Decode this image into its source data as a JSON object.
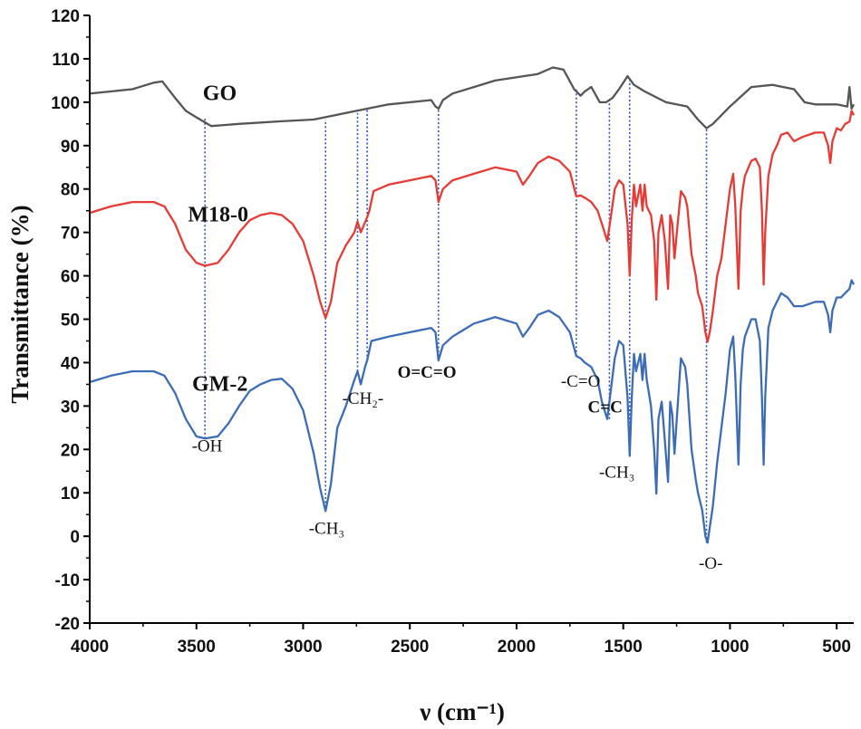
{
  "chart_data": {
    "type": "line",
    "xlabel": "ν (cm⁻¹)",
    "ylabel": "Transmittance (%)",
    "xlim": [
      4000,
      420
    ],
    "ylim": [
      -20,
      120
    ],
    "x_reversed": true,
    "xticks": [
      4000,
      3500,
      3000,
      2500,
      2000,
      1500,
      1000,
      500
    ],
    "yticks": [
      -20,
      -10,
      0,
      10,
      20,
      30,
      40,
      50,
      60,
      70,
      80,
      90,
      100,
      110,
      120
    ],
    "series": [
      {
        "name": "GO",
        "label": "GO",
        "color": "#555555",
        "points": [
          [
            4000,
            102
          ],
          [
            3800,
            103
          ],
          [
            3700,
            104.5
          ],
          [
            3660,
            104.8
          ],
          [
            3600,
            101
          ],
          [
            3550,
            98
          ],
          [
            3500,
            96.5
          ],
          [
            3430,
            94.5
          ],
          [
            3300,
            95
          ],
          [
            3100,
            95.6
          ],
          [
            2950,
            96
          ],
          [
            2800,
            97.5
          ],
          [
            2600,
            99.5
          ],
          [
            2400,
            100.5
          ],
          [
            2380,
            99
          ],
          [
            2365,
            98.5
          ],
          [
            2345,
            100.5
          ],
          [
            2300,
            102
          ],
          [
            2100,
            105
          ],
          [
            1900,
            106.5
          ],
          [
            1830,
            108
          ],
          [
            1780,
            107.5
          ],
          [
            1730,
            103
          ],
          [
            1700,
            101.5
          ],
          [
            1680,
            102.5
          ],
          [
            1650,
            103.5
          ],
          [
            1610,
            100
          ],
          [
            1580,
            100
          ],
          [
            1550,
            101
          ],
          [
            1520,
            103
          ],
          [
            1480,
            106
          ],
          [
            1450,
            104
          ],
          [
            1400,
            102.5
          ],
          [
            1300,
            100
          ],
          [
            1200,
            99
          ],
          [
            1150,
            96
          ],
          [
            1110,
            94
          ],
          [
            1080,
            95
          ],
          [
            1000,
            99
          ],
          [
            900,
            103.5
          ],
          [
            800,
            104
          ],
          [
            700,
            103
          ],
          [
            650,
            100
          ],
          [
            600,
            99.5
          ],
          [
            500,
            99.5
          ],
          [
            450,
            99
          ],
          [
            440,
            103.5
          ],
          [
            430,
            98.5
          ],
          [
            420,
            99.5
          ]
        ]
      },
      {
        "name": "M18-0",
        "label": "M18-0",
        "color": "#e83a35",
        "points": [
          [
            4000,
            74.5
          ],
          [
            3900,
            76
          ],
          [
            3800,
            77
          ],
          [
            3700,
            77
          ],
          [
            3650,
            76
          ],
          [
            3600,
            72
          ],
          [
            3550,
            66
          ],
          [
            3500,
            63
          ],
          [
            3460,
            62.3
          ],
          [
            3400,
            63
          ],
          [
            3350,
            66
          ],
          [
            3300,
            70
          ],
          [
            3250,
            72.8
          ],
          [
            3200,
            74
          ],
          [
            3150,
            74.5
          ],
          [
            3100,
            74
          ],
          [
            3050,
            72
          ],
          [
            3000,
            68
          ],
          [
            2950,
            60
          ],
          [
            2920,
            54
          ],
          [
            2895,
            50.3
          ],
          [
            2870,
            54
          ],
          [
            2840,
            63
          ],
          [
            2800,
            67
          ],
          [
            2760,
            70
          ],
          [
            2745,
            72.5
          ],
          [
            2730,
            70
          ],
          [
            2700,
            73.5
          ],
          [
            2690,
            75
          ],
          [
            2670,
            79.5
          ],
          [
            2600,
            81
          ],
          [
            2500,
            82
          ],
          [
            2400,
            83
          ],
          [
            2380,
            82
          ],
          [
            2366,
            77
          ],
          [
            2345,
            80
          ],
          [
            2300,
            82
          ],
          [
            2200,
            83.5
          ],
          [
            2100,
            85
          ],
          [
            2000,
            84
          ],
          [
            1970,
            81
          ],
          [
            1940,
            83
          ],
          [
            1900,
            86
          ],
          [
            1850,
            87.5
          ],
          [
            1800,
            86.5
          ],
          [
            1750,
            84
          ],
          [
            1720,
            78.3
          ],
          [
            1700,
            78.5
          ],
          [
            1680,
            78
          ],
          [
            1650,
            77
          ],
          [
            1620,
            75
          ],
          [
            1600,
            72
          ],
          [
            1575,
            68
          ],
          [
            1560,
            73
          ],
          [
            1540,
            80
          ],
          [
            1520,
            82
          ],
          [
            1500,
            81
          ],
          [
            1480,
            72
          ],
          [
            1470,
            60
          ],
          [
            1460,
            73
          ],
          [
            1450,
            81
          ],
          [
            1440,
            76
          ],
          [
            1420,
            81
          ],
          [
            1410,
            75
          ],
          [
            1400,
            81
          ],
          [
            1390,
            76
          ],
          [
            1370,
            74
          ],
          [
            1355,
            68
          ],
          [
            1345,
            54.5
          ],
          [
            1335,
            70
          ],
          [
            1320,
            74
          ],
          [
            1305,
            68
          ],
          [
            1290,
            57
          ],
          [
            1280,
            74
          ],
          [
            1270,
            72
          ],
          [
            1260,
            64
          ],
          [
            1245,
            72
          ],
          [
            1230,
            79.5
          ],
          [
            1210,
            78
          ],
          [
            1200,
            76
          ],
          [
            1180,
            65
          ],
          [
            1160,
            60
          ],
          [
            1150,
            56
          ],
          [
            1130,
            53
          ],
          [
            1115,
            47
          ],
          [
            1105,
            44.8
          ],
          [
            1095,
            47
          ],
          [
            1080,
            52
          ],
          [
            1060,
            60
          ],
          [
            1040,
            64
          ],
          [
            1020,
            72
          ],
          [
            1000,
            80
          ],
          [
            985,
            83.5
          ],
          [
            975,
            76
          ],
          [
            960,
            57
          ],
          [
            950,
            75
          ],
          [
            940,
            80
          ],
          [
            930,
            83
          ],
          [
            900,
            86.5
          ],
          [
            880,
            87
          ],
          [
            860,
            85
          ],
          [
            850,
            75
          ],
          [
            842,
            58
          ],
          [
            835,
            70
          ],
          [
            820,
            83
          ],
          [
            800,
            88
          ],
          [
            780,
            90
          ],
          [
            760,
            92.5
          ],
          [
            730,
            93
          ],
          [
            700,
            91
          ],
          [
            660,
            92
          ],
          [
            600,
            93
          ],
          [
            560,
            93
          ],
          [
            540,
            90
          ],
          [
            530,
            86
          ],
          [
            520,
            91
          ],
          [
            500,
            94
          ],
          [
            480,
            93.5
          ],
          [
            460,
            95
          ],
          [
            440,
            95.5
          ],
          [
            430,
            98
          ],
          [
            420,
            97
          ]
        ]
      },
      {
        "name": "GM-2",
        "label": "GM-2",
        "color": "#3c6cb5",
        "points": [
          [
            4000,
            35.5
          ],
          [
            3900,
            37
          ],
          [
            3800,
            38
          ],
          [
            3700,
            38
          ],
          [
            3650,
            37
          ],
          [
            3600,
            33
          ],
          [
            3550,
            27
          ],
          [
            3500,
            23
          ],
          [
            3460,
            22.5
          ],
          [
            3400,
            23
          ],
          [
            3350,
            26
          ],
          [
            3300,
            30
          ],
          [
            3250,
            33.5
          ],
          [
            3200,
            35
          ],
          [
            3150,
            36
          ],
          [
            3100,
            36.3
          ],
          [
            3050,
            34
          ],
          [
            3000,
            29
          ],
          [
            2950,
            19
          ],
          [
            2920,
            11
          ],
          [
            2895,
            5.8
          ],
          [
            2870,
            12
          ],
          [
            2840,
            25
          ],
          [
            2800,
            30
          ],
          [
            2760,
            36
          ],
          [
            2745,
            38
          ],
          [
            2730,
            35
          ],
          [
            2710,
            39
          ],
          [
            2700,
            40.5
          ],
          [
            2680,
            45
          ],
          [
            2600,
            46
          ],
          [
            2500,
            47
          ],
          [
            2400,
            48
          ],
          [
            2380,
            47
          ],
          [
            2366,
            40.5
          ],
          [
            2345,
            44
          ],
          [
            2300,
            46
          ],
          [
            2200,
            49
          ],
          [
            2100,
            50.5
          ],
          [
            2000,
            49
          ],
          [
            1970,
            46
          ],
          [
            1940,
            48
          ],
          [
            1900,
            51
          ],
          [
            1850,
            52
          ],
          [
            1800,
            50.5
          ],
          [
            1750,
            47
          ],
          [
            1720,
            41.5
          ],
          [
            1700,
            41
          ],
          [
            1680,
            40
          ],
          [
            1650,
            39
          ],
          [
            1620,
            36
          ],
          [
            1600,
            31
          ],
          [
            1575,
            27
          ],
          [
            1560,
            33
          ],
          [
            1540,
            41
          ],
          [
            1520,
            45
          ],
          [
            1500,
            44
          ],
          [
            1480,
            32
          ],
          [
            1470,
            18.5
          ],
          [
            1460,
            32
          ],
          [
            1450,
            42
          ],
          [
            1440,
            38
          ],
          [
            1420,
            42
          ],
          [
            1410,
            36
          ],
          [
            1400,
            42
          ],
          [
            1390,
            36
          ],
          [
            1370,
            30
          ],
          [
            1355,
            20
          ],
          [
            1345,
            9.8
          ],
          [
            1335,
            27
          ],
          [
            1320,
            31
          ],
          [
            1305,
            22
          ],
          [
            1290,
            12.5
          ],
          [
            1280,
            31
          ],
          [
            1270,
            28
          ],
          [
            1260,
            19
          ],
          [
            1245,
            30
          ],
          [
            1230,
            41
          ],
          [
            1210,
            39
          ],
          [
            1200,
            35
          ],
          [
            1180,
            20
          ],
          [
            1160,
            13
          ],
          [
            1150,
            10
          ],
          [
            1130,
            6
          ],
          [
            1115,
            0
          ],
          [
            1105,
            -1.5
          ],
          [
            1095,
            2
          ],
          [
            1080,
            7
          ],
          [
            1060,
            17
          ],
          [
            1040,
            25
          ],
          [
            1020,
            33
          ],
          [
            1000,
            43
          ],
          [
            985,
            46
          ],
          [
            975,
            37
          ],
          [
            960,
            16.5
          ],
          [
            950,
            35
          ],
          [
            940,
            43
          ],
          [
            930,
            46
          ],
          [
            900,
            50
          ],
          [
            880,
            50
          ],
          [
            860,
            45
          ],
          [
            850,
            32
          ],
          [
            842,
            16.5
          ],
          [
            835,
            32
          ],
          [
            820,
            48
          ],
          [
            800,
            52
          ],
          [
            780,
            54
          ],
          [
            760,
            56
          ],
          [
            730,
            55
          ],
          [
            700,
            53
          ],
          [
            660,
            53
          ],
          [
            600,
            54
          ],
          [
            560,
            54
          ],
          [
            540,
            51
          ],
          [
            530,
            47
          ],
          [
            520,
            52
          ],
          [
            500,
            55
          ],
          [
            480,
            55
          ],
          [
            460,
            56
          ],
          [
            440,
            57
          ],
          [
            430,
            59
          ],
          [
            420,
            58
          ]
        ]
      }
    ],
    "series_labels": [
      {
        "text": "GO",
        "x": 3470,
        "y": 100.5
      },
      {
        "text": "M18-0",
        "x": 3540,
        "y": 72.5
      },
      {
        "text": "GM-2",
        "x": 3520,
        "y": 33.5
      }
    ],
    "vlines": [
      {
        "x": 3460,
        "y_from": 22.5,
        "y_to": 96.5
      },
      {
        "x": 2895,
        "y_from": 5.8,
        "y_to": 96
      },
      {
        "x": 2745,
        "y_from": 38,
        "y_to": 97.5
      },
      {
        "x": 2700,
        "y_from": 40.5,
        "y_to": 98.5
      },
      {
        "x": 2366,
        "y_from": 40.5,
        "y_to": 98.5
      },
      {
        "x": 1720,
        "y_from": 41.5,
        "y_to": 103
      },
      {
        "x": 1565,
        "y_from": 27,
        "y_to": 100.5
      },
      {
        "x": 1470,
        "y_from": 18.5,
        "y_to": 105
      },
      {
        "x": 1110,
        "y_from": -1.5,
        "y_to": 94
      }
    ],
    "annotations": [
      {
        "text": "-OH",
        "x": 3450,
        "y": 19.5
      },
      {
        "text": "-CH₃",
        "x": 2890,
        "y": 0.5
      },
      {
        "text": "-CH₂-",
        "x": 2720,
        "y": 30.5
      },
      {
        "text": "O=C=O",
        "x": 2420,
        "y": 36.5
      },
      {
        "text": "-C=O",
        "x": 1700,
        "y": 34.5
      },
      {
        "text": "C=C",
        "x": 1585,
        "y": 28.5
      },
      {
        "text": "-CH₃",
        "x": 1530,
        "y": 13.5
      },
      {
        "text": "-O-",
        "x": 1090,
        "y": -7.5
      }
    ]
  }
}
